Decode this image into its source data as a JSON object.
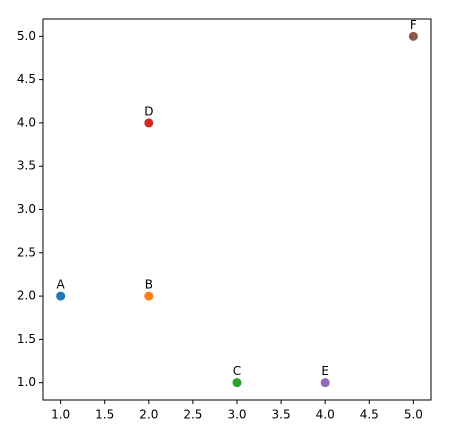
{
  "chart_data": {
    "type": "scatter",
    "points": [
      {
        "label": "A",
        "x": 1,
        "y": 2,
        "color": "#1f77b4"
      },
      {
        "label": "B",
        "x": 2,
        "y": 2,
        "color": "#ff7f0e"
      },
      {
        "label": "C",
        "x": 3,
        "y": 1,
        "color": "#2ca02c"
      },
      {
        "label": "D",
        "x": 2,
        "y": 4,
        "color": "#d62728"
      },
      {
        "label": "E",
        "x": 4,
        "y": 1,
        "color": "#9467bd"
      },
      {
        "label": "F",
        "x": 5,
        "y": 5,
        "color": "#8c564b"
      }
    ],
    "xlim": [
      0.8,
      5.2
    ],
    "ylim": [
      0.8,
      5.2
    ],
    "xticks": [
      {
        "value": 1,
        "label": "1.0"
      },
      {
        "value": 1.5,
        "label": "1.5"
      },
      {
        "value": 2,
        "label": "2.0"
      },
      {
        "value": 2.5,
        "label": "2.5"
      },
      {
        "value": 3,
        "label": "3.0"
      },
      {
        "value": 3.5,
        "label": "3.5"
      },
      {
        "value": 4,
        "label": "4.0"
      },
      {
        "value": 4.5,
        "label": "4.5"
      },
      {
        "value": 5,
        "label": "5.0"
      }
    ],
    "yticks": [
      {
        "value": 1,
        "label": "1.0"
      },
      {
        "value": 1.5,
        "label": "1.5"
      },
      {
        "value": 2,
        "label": "2.0"
      },
      {
        "value": 2.5,
        "label": "2.5"
      },
      {
        "value": 3,
        "label": "3.0"
      },
      {
        "value": 3.5,
        "label": "3.5"
      },
      {
        "value": 4,
        "label": "4.0"
      },
      {
        "value": 4.5,
        "label": "4.5"
      },
      {
        "value": 5,
        "label": "5.0"
      }
    ],
    "grid": false
  }
}
